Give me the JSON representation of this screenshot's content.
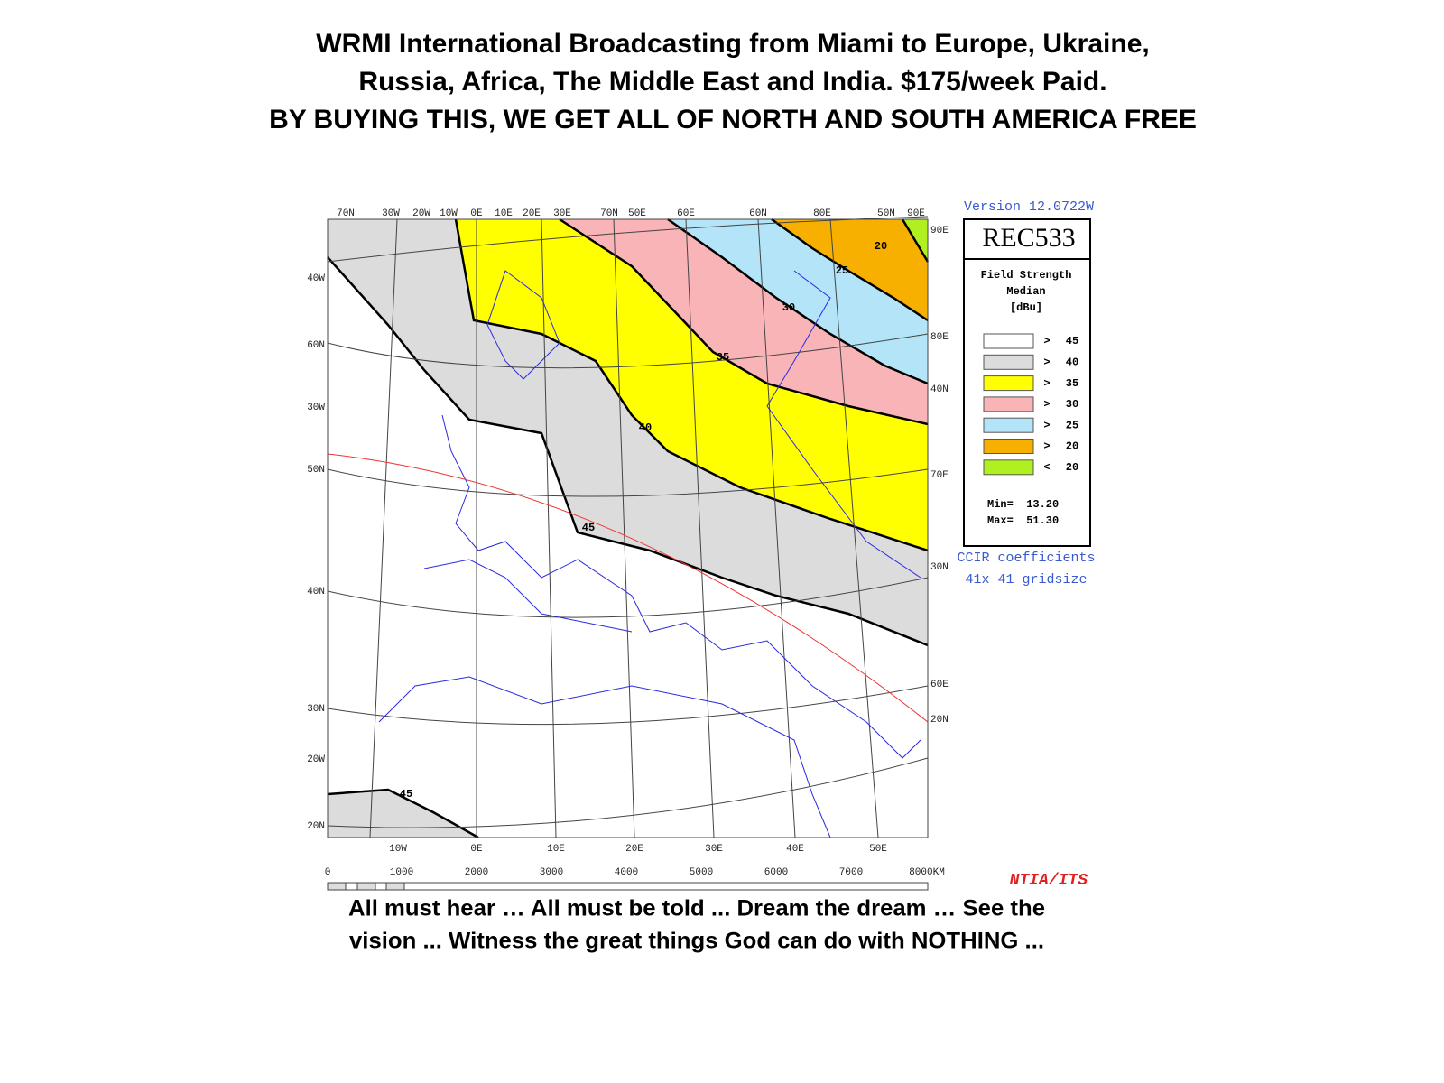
{
  "header": {
    "title_lines": [
      "WRMI International Broadcasting from Miami to Europe, Ukraine,",
      "Russia, Africa, The Middle East and India. $175/week Paid.",
      "BY BUYING THIS, WE GET ALL OF NORTH AND SOUTH AMERICA FREE"
    ]
  },
  "map": {
    "top_labels": [
      "70N",
      "30W",
      "20W",
      "10W",
      "0E",
      "10E",
      "20E",
      "30E",
      "70N",
      "50E",
      "60E",
      "60N",
      "80E",
      "50N",
      "90E"
    ],
    "left_labels": [
      "40W",
      "60N",
      "30W",
      "50N",
      "40N",
      "30N",
      "20W",
      "20N"
    ],
    "right_labels": [
      "90E",
      "80E",
      "40N",
      "70E",
      "30N",
      "60E",
      "20N"
    ],
    "bottom_labels": [
      "10W",
      "0E",
      "10E",
      "20E",
      "30E",
      "40E",
      "50E"
    ],
    "scale_labels": [
      "0",
      "1000",
      "2000",
      "3000",
      "4000",
      "5000",
      "6000",
      "7000",
      "8000KM"
    ],
    "contour_labels": [
      "20",
      "25",
      "30",
      "35",
      "40",
      "45",
      "45"
    ]
  },
  "legend": {
    "version": "Version 12.0722W",
    "model": "REC533",
    "title_lines": [
      "Field Strength",
      "Median",
      "[dBu]"
    ],
    "entries": [
      {
        "sign": ">",
        "value": "45",
        "color": "#ffffff"
      },
      {
        "sign": ">",
        "value": "40",
        "color": "#dcdcdc"
      },
      {
        "sign": ">",
        "value": "35",
        "color": "#ffff00"
      },
      {
        "sign": ">",
        "value": "30",
        "color": "#f9b4b8"
      },
      {
        "sign": ">",
        "value": "25",
        "color": "#b4e4f8"
      },
      {
        "sign": ">",
        "value": "20",
        "color": "#f8b000"
      },
      {
        "sign": "<",
        "value": "20",
        "color": "#b0f020"
      }
    ],
    "min": "Min=  13.20",
    "max": "Max=  51.30",
    "notes": [
      "CCIR coefficients",
      "41x 41 gridsize"
    ],
    "credit": "NTIA/ITS"
  },
  "footer": {
    "lines": [
      "All must hear … All must be told ... Dream the dream … See the",
      "vision ... Witness the great things God can do with NOTHING ..."
    ]
  }
}
